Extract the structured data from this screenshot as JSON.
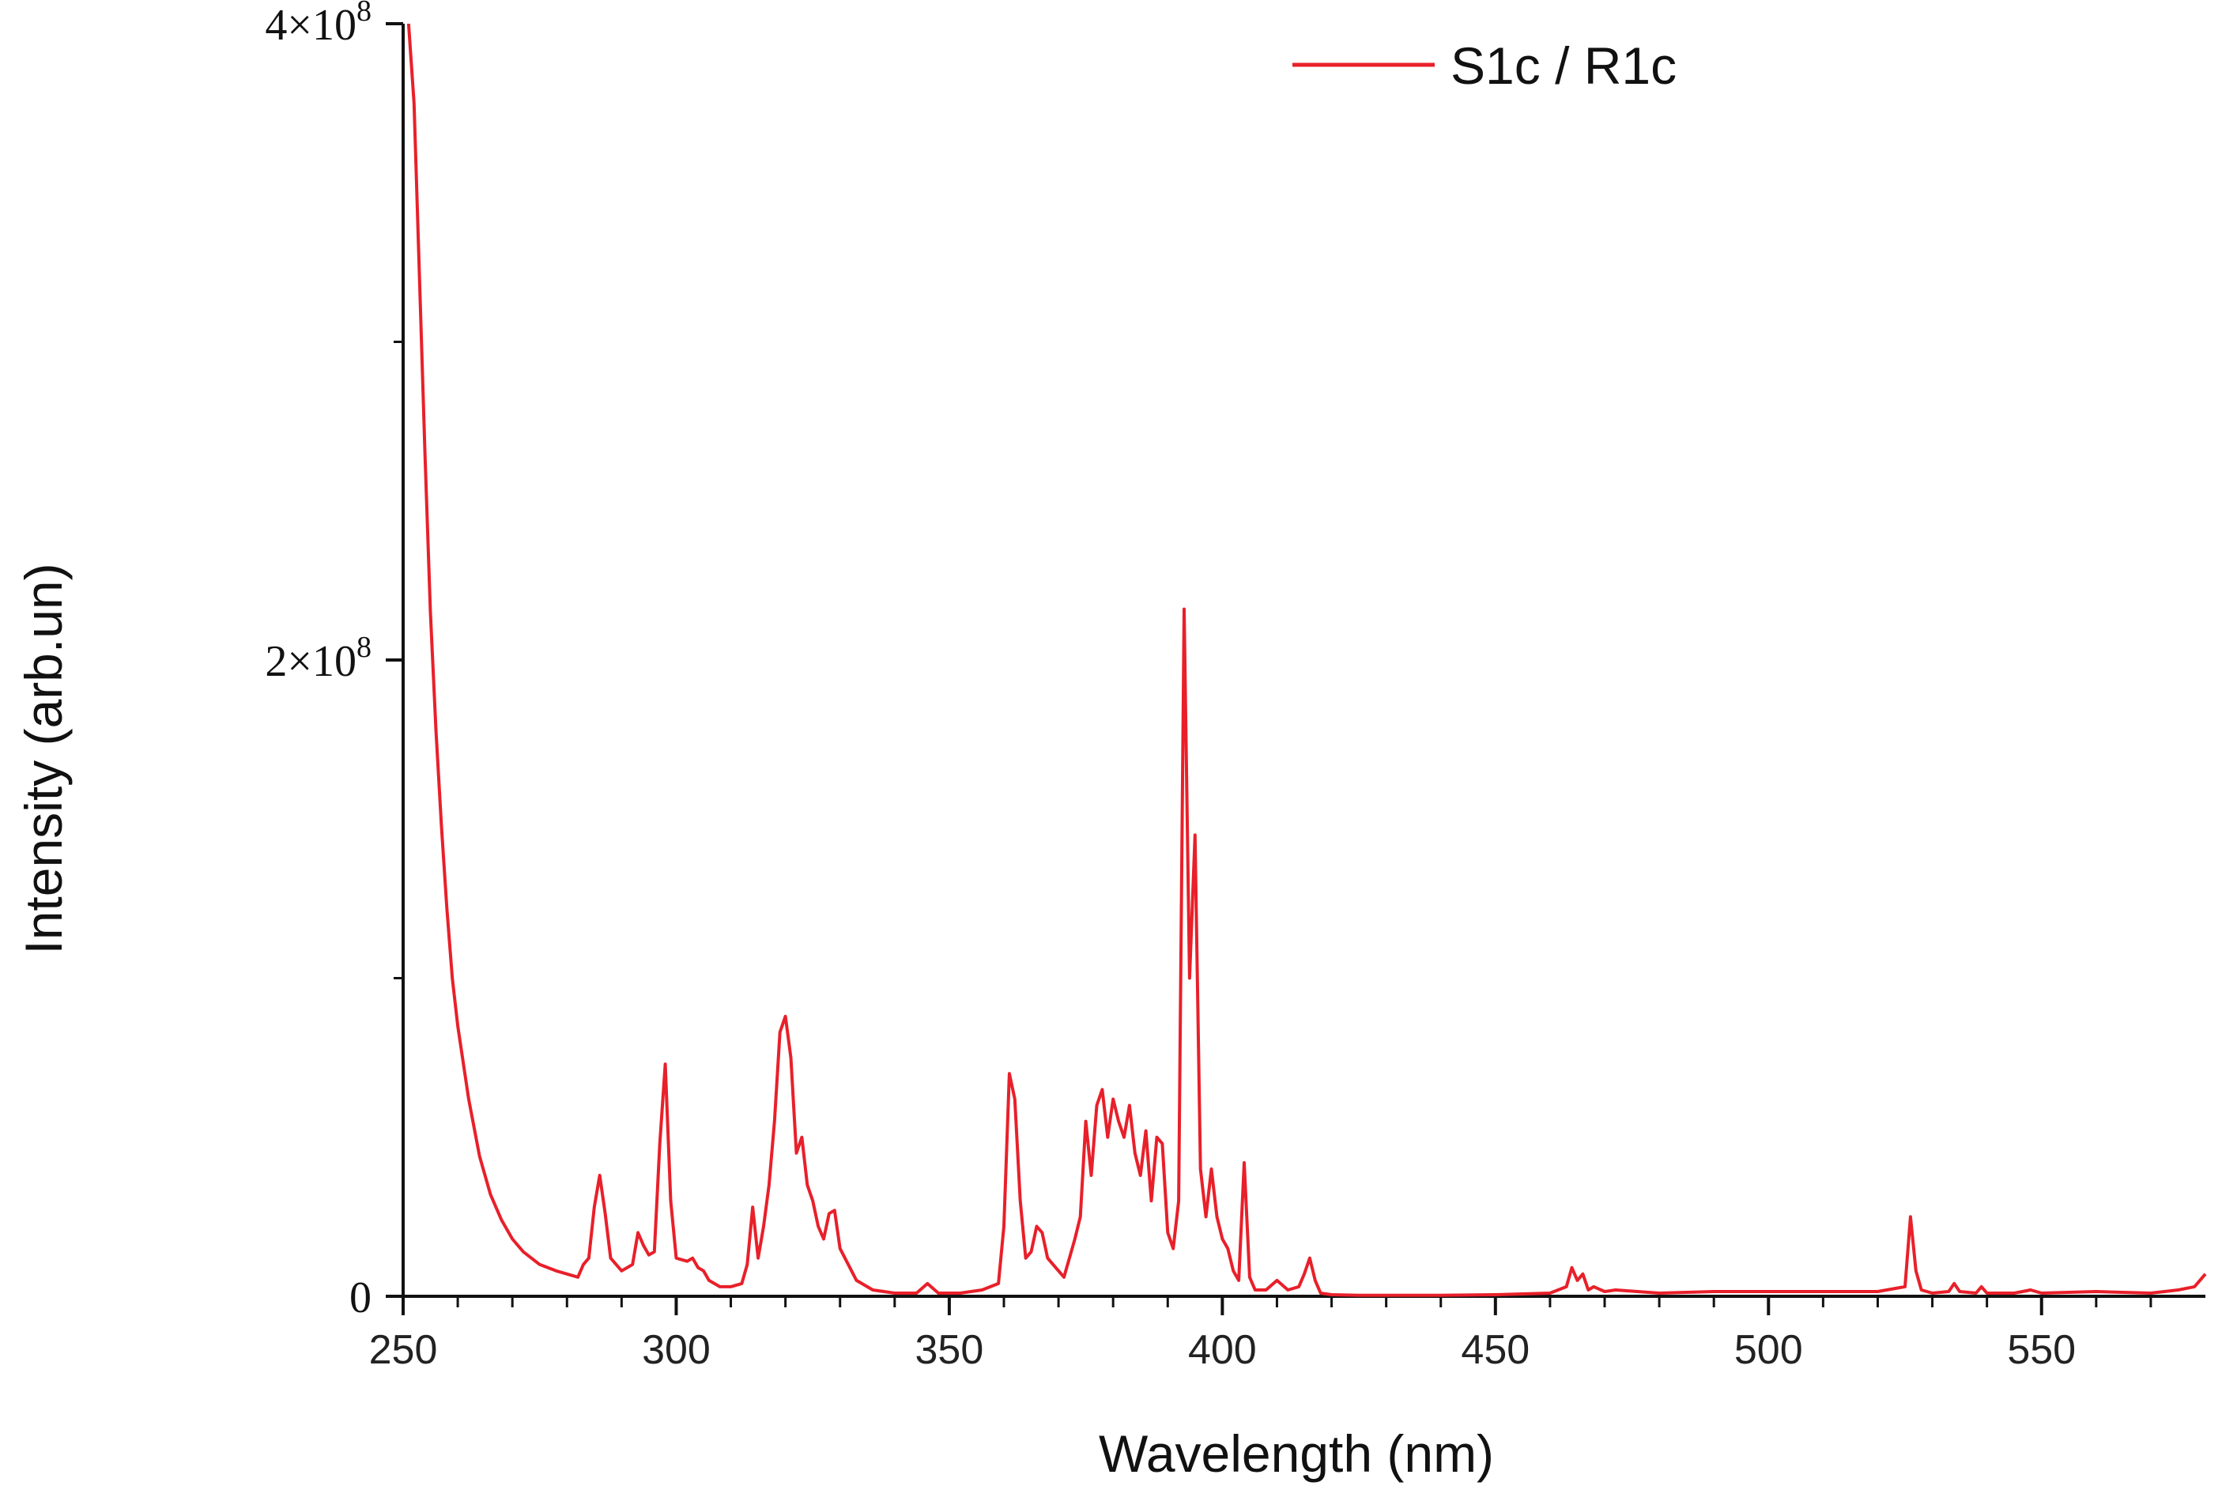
{
  "chart_data": {
    "type": "line",
    "title": "",
    "xlabel": "Wavelength (nm)",
    "ylabel": "Intensity (arb.un)",
    "xlim": [
      250,
      580
    ],
    "ylim": [
      0,
      400000000
    ],
    "grid": false,
    "legend_position": "top-right",
    "x_ticks": [
      {
        "value": 250,
        "label": "250"
      },
      {
        "value": 300,
        "label": "300"
      },
      {
        "value": 350,
        "label": "350"
      },
      {
        "value": 400,
        "label": "400"
      },
      {
        "value": 450,
        "label": "450"
      },
      {
        "value": 500,
        "label": "500"
      },
      {
        "value": 550,
        "label": "550"
      }
    ],
    "y_ticks": [
      {
        "value": 0,
        "mantissa": "0",
        "exponent": ""
      },
      {
        "value": 200000000,
        "mantissa": "2×10",
        "exponent": "8"
      },
      {
        "value": 400000000,
        "mantissa": "4×10",
        "exponent": "8"
      }
    ],
    "series": [
      {
        "name": "S1c / R1c",
        "color": "#e8202a",
        "x": [
          251,
          252,
          253,
          254,
          255,
          256,
          257,
          258,
          259,
          260,
          262,
          264,
          266,
          268,
          270,
          272,
          275,
          278,
          280,
          282,
          283,
          284,
          285,
          286,
          287,
          288,
          290,
          292,
          293,
          294,
          295,
          296,
          297,
          298,
          299,
          300,
          302,
          303,
          304,
          305,
          306,
          308,
          310,
          312,
          313,
          314,
          315,
          316,
          317,
          318,
          319,
          320,
          321,
          322,
          323,
          324,
          325,
          326,
          327,
          328,
          329,
          330,
          333,
          336,
          340,
          344,
          346,
          348,
          352,
          356,
          359,
          360,
          361,
          362,
          363,
          364,
          365,
          366,
          367,
          368,
          369,
          370,
          371,
          372,
          373,
          374,
          375,
          376,
          377,
          378,
          379,
          380,
          381,
          382,
          383,
          384,
          385,
          386,
          387,
          388,
          389,
          390,
          391,
          392,
          393,
          394,
          395,
          396,
          397,
          398,
          399,
          400,
          401,
          402,
          403,
          404,
          405,
          406,
          408,
          410,
          412,
          414,
          415,
          416,
          417,
          418,
          420,
          425,
          430,
          440,
          450,
          460,
          463,
          464,
          465,
          466,
          467,
          468,
          470,
          472,
          480,
          490,
          500,
          510,
          520,
          525,
          526,
          527,
          528,
          530,
          533,
          534,
          535,
          538,
          539,
          540,
          545,
          548,
          550,
          560,
          570,
          575,
          578,
          580
        ],
        "y": [
          400000000,
          375000000,
          320000000,
          265000000,
          215000000,
          178000000,
          148000000,
          122000000,
          100000000,
          85000000,
          62000000,
          44000000,
          32000000,
          24000000,
          18000000,
          14000000,
          10000000,
          8000000,
          7000000,
          6000000,
          10000000,
          12000000,
          28000000,
          38000000,
          26000000,
          12000000,
          8000000,
          10000000,
          20000000,
          16000000,
          13000000,
          14000000,
          48000000,
          73000000,
          30000000,
          12000000,
          11000000,
          12000000,
          9000000,
          8000000,
          5000000,
          3000000,
          3000000,
          4000000,
          10000000,
          28000000,
          12000000,
          22000000,
          35000000,
          55000000,
          83000000,
          88000000,
          75000000,
          45000000,
          50000000,
          35000000,
          30000000,
          22000000,
          18000000,
          26000000,
          27000000,
          15000000,
          5000000,
          2000000,
          1000000,
          1000000,
          4000000,
          1000000,
          1000000,
          2000000,
          4000000,
          22000000,
          70000000,
          62000000,
          30000000,
          12000000,
          14000000,
          22000000,
          20000000,
          12000000,
          10000000,
          8000000,
          6000000,
          12000000,
          18000000,
          25000000,
          55000000,
          38000000,
          60000000,
          65000000,
          50000000,
          62000000,
          55000000,
          50000000,
          60000000,
          45000000,
          38000000,
          52000000,
          30000000,
          50000000,
          48000000,
          20000000,
          15000000,
          30000000,
          216000000,
          100000000,
          145000000,
          40000000,
          25000000,
          40000000,
          25000000,
          18000000,
          15000000,
          8000000,
          5000000,
          42000000,
          6000000,
          2000000,
          2000000,
          5000000,
          2000000,
          3000000,
          7000000,
          12000000,
          5000000,
          1000000,
          500000,
          300000,
          300000,
          300000,
          500000,
          1000000,
          3000000,
          9000000,
          5000000,
          7000000,
          2000000,
          3000000,
          1500000,
          2000000,
          1000000,
          1500000,
          1500000,
          1500000,
          1500000,
          3000000,
          25000000,
          8000000,
          2000000,
          1000000,
          1500000,
          4000000,
          1500000,
          1000000,
          3000000,
          1000000,
          1000000,
          2000000,
          1000000,
          1500000,
          1000000,
          2000000,
          3000000,
          7000000
        ]
      }
    ]
  }
}
